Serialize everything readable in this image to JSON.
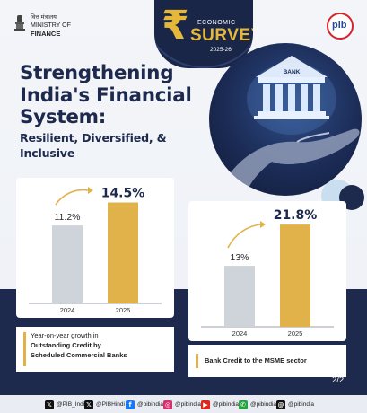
{
  "header": {
    "ministry_hindi": "वित्त मंत्रालय",
    "ministry_en_line1": "MINISTRY OF",
    "ministry_en_line2": "FINANCE",
    "emblem_caption": "सत्यमेव जयते",
    "survey_symbol": "₹",
    "survey_line1": "ECONOMIC",
    "survey_line2": "SURVEY",
    "survey_year": "2025-26",
    "pib_logo_text": "pib"
  },
  "illustration": {
    "bank_sign": "BANK"
  },
  "headline": {
    "line1": "Strengthening",
    "line2": "India's Financial",
    "line3": "System:",
    "sub_line1": "Resilient, Diversified, &",
    "sub_line2": "Inclusive"
  },
  "chart_data": [
    {
      "type": "bar",
      "categories": [
        "2024",
        "2025"
      ],
      "values": [
        11.2,
        14.5
      ],
      "value_labels": [
        "11.2%",
        "14.5%"
      ],
      "title": "Year-on-year growth in Outstanding Credit by Scheduled Commercial Banks",
      "colors": [
        "#cfd3da",
        "#e2b24a"
      ]
    },
    {
      "type": "bar",
      "categories": [
        "2024",
        "2025"
      ],
      "values": [
        13,
        21.8
      ],
      "value_labels": [
        "13%",
        "21.8%"
      ],
      "title": "Bank Credit to the MSME sector",
      "colors": [
        "#cfd3da",
        "#e2b24a"
      ]
    }
  ],
  "captions": {
    "card1_line1": "Year-on-year growth in",
    "card1_line2": "Outstanding Credit by",
    "card1_line3": "Scheduled Commercial Banks",
    "card2_line1": "Bank Credit to the MSME sector"
  },
  "page_number": "2/2",
  "footer": {
    "socials": [
      {
        "icon": "x-icon",
        "glyph": "𝕏",
        "handle": "@PIB_India",
        "color": "#111111"
      },
      {
        "icon": "x-icon",
        "glyph": "𝕏",
        "handle": "@PIBHindi",
        "color": "#111111"
      },
      {
        "icon": "facebook-icon",
        "glyph": "f",
        "handle": "@pibindia",
        "color": "#1877f2"
      },
      {
        "icon": "instagram-icon",
        "glyph": "◎",
        "handle": "@pibindia",
        "color": "#d6306f"
      },
      {
        "icon": "youtube-icon",
        "glyph": "▶",
        "handle": "@pibindia",
        "color": "#e0251b"
      },
      {
        "icon": "whatsapp-icon",
        "glyph": "✆",
        "handle": "@pibindia",
        "color": "#25a244"
      },
      {
        "icon": "threads-icon",
        "glyph": "@",
        "handle": "@pibindia",
        "color": "#111111"
      }
    ]
  },
  "colors": {
    "navy": "#1e2a4d",
    "gold": "#e2b24a",
    "grey_bar": "#cfd3da"
  }
}
